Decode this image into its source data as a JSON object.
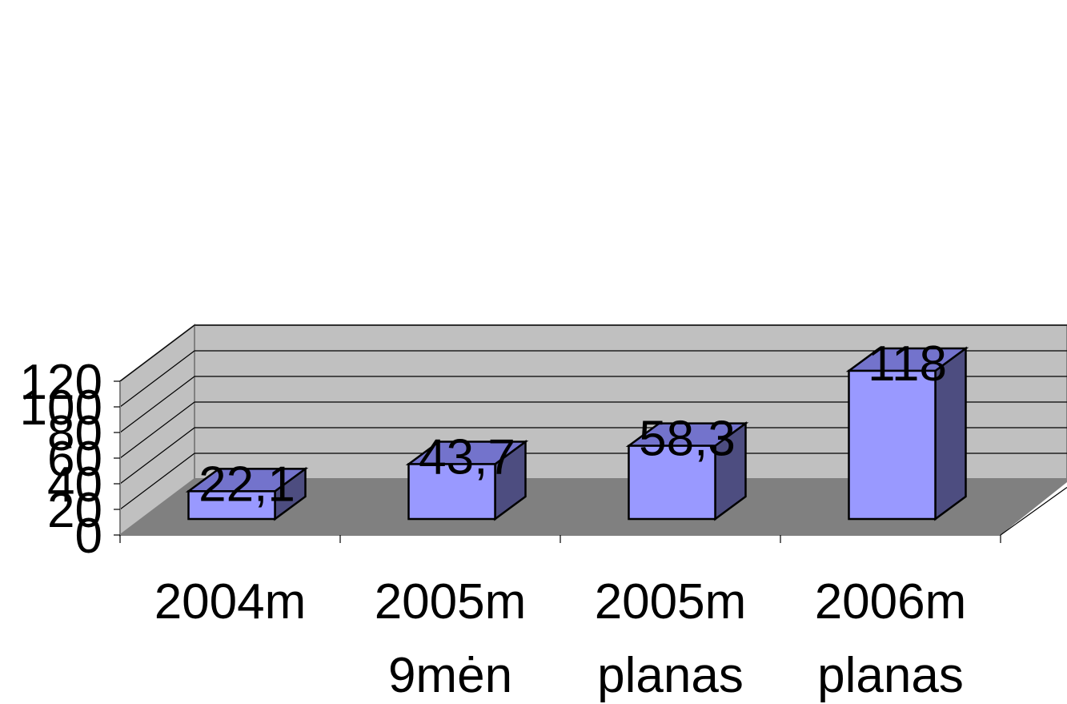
{
  "chart_data": {
    "type": "bar",
    "categories": [
      [
        "2004m"
      ],
      [
        "2005m",
        "9mėn"
      ],
      [
        "2005m",
        "planas"
      ],
      [
        "2006m",
        "planas"
      ]
    ],
    "values": [
      22.1,
      43.7,
      58.3,
      118
    ],
    "data_labels": [
      "22,1",
      "43,7",
      "58,3",
      "118"
    ],
    "yticks": [
      "0",
      "20",
      "40",
      "60",
      "80",
      "100",
      "120"
    ],
    "ylim": [
      0,
      120
    ],
    "title": "",
    "xlabel": "",
    "ylabel": "",
    "grid": true,
    "style": "3d-column"
  },
  "colors": {
    "bar_front": "#9999ff",
    "bar_side": "#4d4d80",
    "bar_top": "#7373cc",
    "back_wall": "#c0c0c0",
    "side_wall": "#c0c0c0",
    "floor": "#808080",
    "gridline": "#000000"
  }
}
